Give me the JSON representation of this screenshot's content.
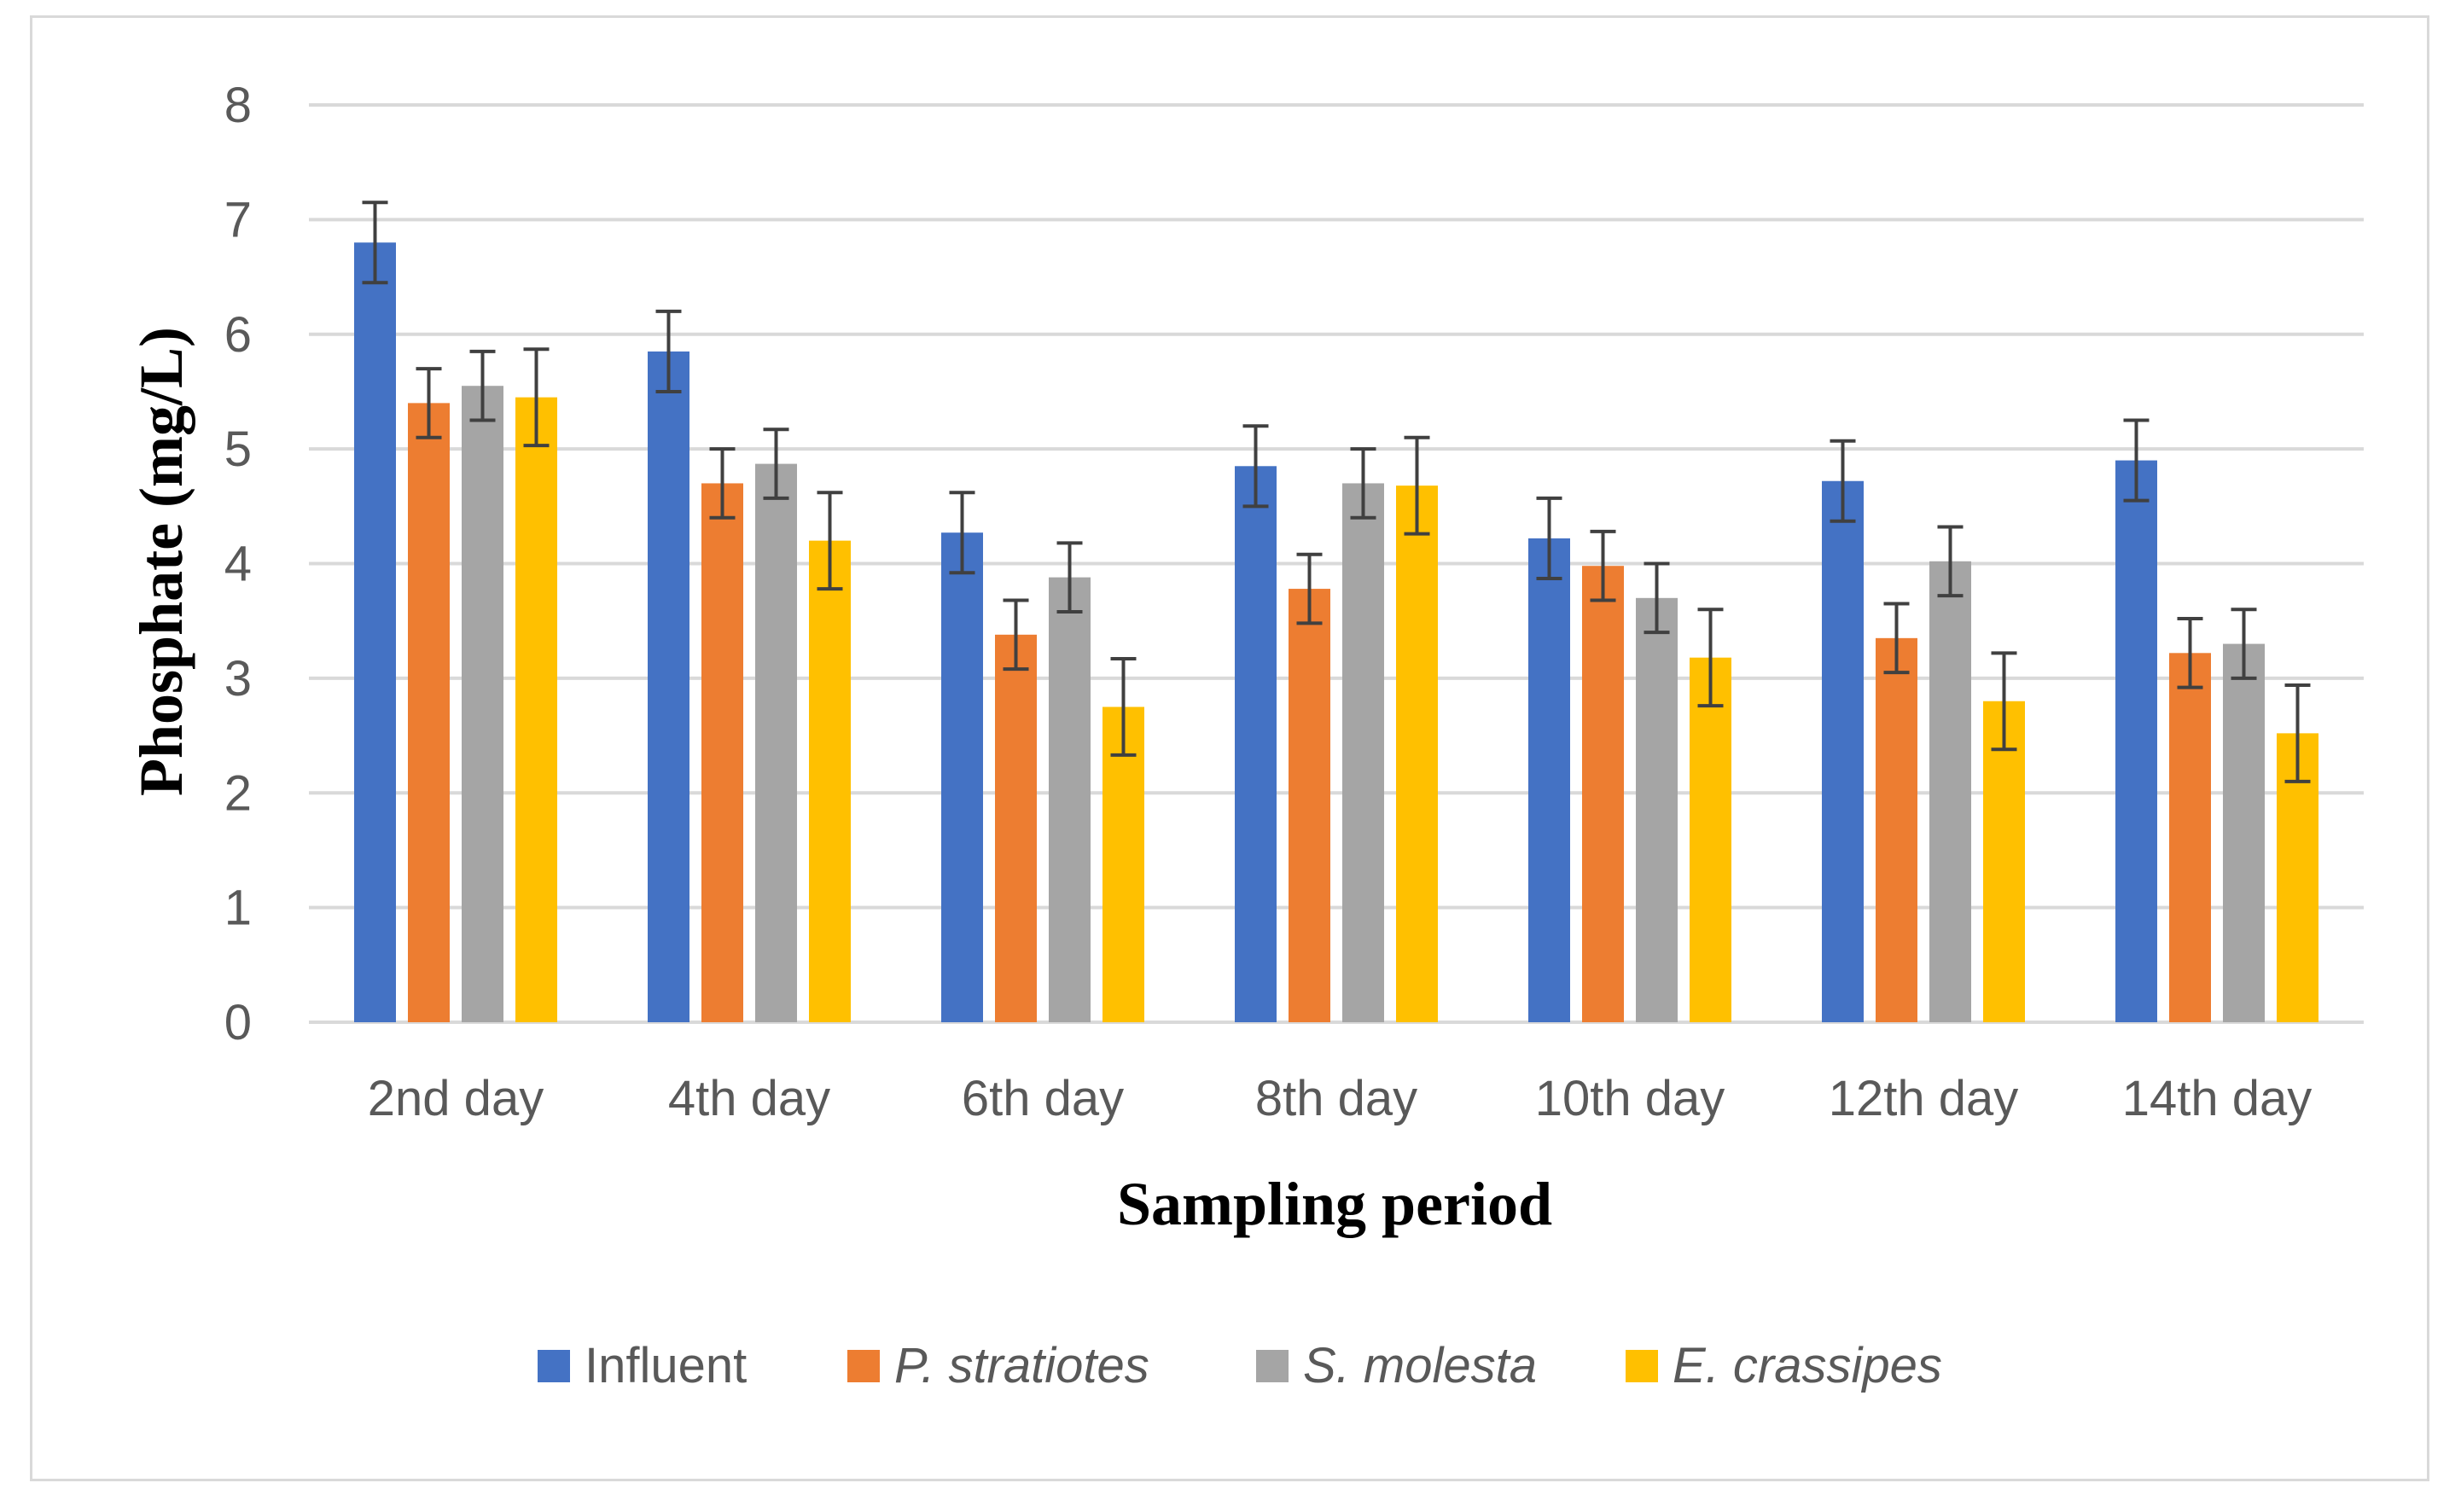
{
  "chart_data": {
    "type": "bar",
    "title": "",
    "xlabel": "Sampling period",
    "ylabel": "Phosphate (mg/L)",
    "ylim": [
      0,
      8
    ],
    "yticks": [
      "0",
      "1",
      "2",
      "3",
      "4",
      "5",
      "6",
      "7",
      "8"
    ],
    "grid": true,
    "legend_position": "bottom",
    "categories": [
      "2nd day",
      "4th day",
      "6th day",
      "8th day",
      "10th day",
      "12th day",
      "14th day"
    ],
    "series": [
      {
        "name": "Influent",
        "italic": false,
        "color": "#4472C4",
        "values": [
          6.8,
          5.85,
          4.27,
          4.85,
          4.22,
          4.72,
          4.9
        ],
        "errors": [
          0.35,
          0.35,
          0.35,
          0.35,
          0.35,
          0.35,
          0.35
        ]
      },
      {
        "name": "P. stratiotes",
        "italic": true,
        "color": "#ED7D31",
        "values": [
          5.4,
          4.7,
          3.38,
          3.78,
          3.98,
          3.35,
          3.22
        ],
        "errors": [
          0.3,
          0.3,
          0.3,
          0.3,
          0.3,
          0.3,
          0.3
        ]
      },
      {
        "name": "S. molesta",
        "italic": true,
        "color": "#A5A5A5",
        "values": [
          5.55,
          4.87,
          3.88,
          4.7,
          3.7,
          4.02,
          3.3
        ],
        "errors": [
          0.3,
          0.3,
          0.3,
          0.3,
          0.3,
          0.3,
          0.3
        ]
      },
      {
        "name": "E. crassipes",
        "italic": true,
        "color": "#FFC000",
        "values": [
          5.45,
          4.2,
          2.75,
          4.68,
          3.18,
          2.8,
          2.52
        ],
        "errors": [
          0.42,
          0.42,
          0.42,
          0.42,
          0.42,
          0.42,
          0.42
        ]
      }
    ],
    "error_bar_color": "#404040",
    "gridline_color": "#d9d9d9"
  }
}
